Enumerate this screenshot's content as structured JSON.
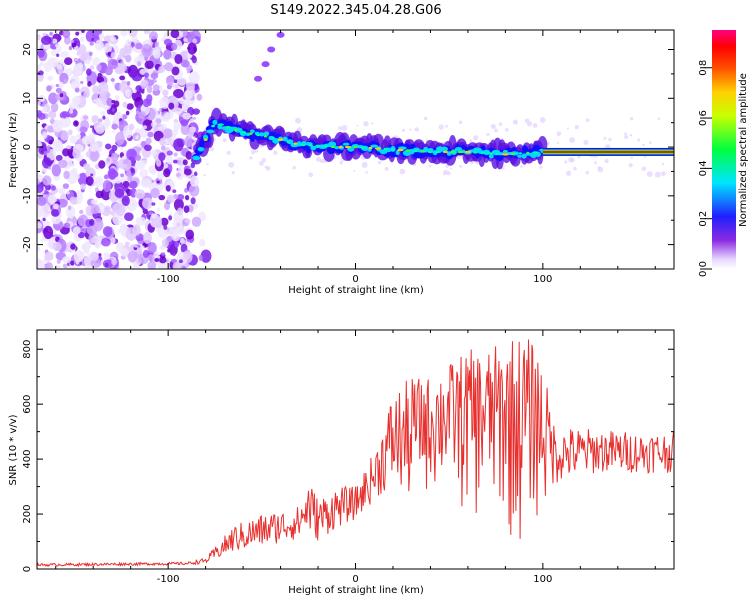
{
  "figure_title": "S149.2022.345.04.28.G06",
  "chart_data": [
    {
      "type": "heatmap",
      "xlabel": "Height of straight line (km)",
      "ylabel": "Frequency (Hz)",
      "xlim": [
        -170,
        170
      ],
      "ylim": [
        -25,
        24
      ],
      "x_ticks": [
        -100,
        0,
        100
      ],
      "y_ticks": [
        -20,
        -10,
        0,
        10,
        20
      ],
      "colorbar": {
        "label": "Normalized spectral amplitude",
        "range": [
          0,
          0.95
        ],
        "ticks": [
          0.0,
          0.2,
          0.4,
          0.6,
          0.8
        ],
        "colormap": "rainbow (violet to magenta)"
      },
      "features": [
        {
          "description": "noise region",
          "x_range": [
            -170,
            -85
          ],
          "frequency_range": [
            -25,
            24
          ]
        },
        {
          "description": "signal ridge",
          "x_range": [
            -85,
            100
          ],
          "x": [
            -85,
            -75,
            -60,
            -45,
            -30,
            -10,
            0,
            20,
            40,
            60,
            80,
            100
          ],
          "frequency": [
            -2,
            5,
            3,
            2,
            0.5,
            0,
            0,
            -0.5,
            -1,
            -1,
            -1.5,
            -1
          ]
        },
        {
          "description": "constant line",
          "x_range": [
            100,
            170
          ],
          "frequency": -1
        }
      ]
    },
    {
      "type": "line",
      "xlabel": "Height of straight line (km)",
      "ylabel": "SNR (10 * v/v)",
      "xlim": [
        -170,
        170
      ],
      "ylim": [
        0,
        870
      ],
      "x_ticks": [
        -100,
        0,
        100
      ],
      "y_ticks": [
        0,
        200,
        400,
        600,
        800
      ],
      "color": "#e8302e",
      "envelope": {
        "x": [
          -170,
          -90,
          -80,
          -65,
          -50,
          -30,
          -25,
          -20,
          -10,
          0,
          10,
          20,
          30,
          40,
          50,
          60,
          70,
          80,
          85,
          90,
          95,
          100,
          105,
          110,
          130,
          150,
          170
        ],
        "low": [
          10,
          15,
          20,
          60,
          80,
          110,
          130,
          100,
          150,
          180,
          250,
          300,
          250,
          250,
          250,
          150,
          150,
          100,
          40,
          40,
          150,
          100,
          300,
          320,
          350,
          350,
          350
        ],
        "high": [
          20,
          25,
          40,
          160,
          200,
          230,
          330,
          260,
          300,
          300,
          430,
          650,
          700,
          700,
          750,
          800,
          800,
          830,
          860,
          850,
          830,
          760,
          550,
          520,
          510,
          500,
          500
        ]
      }
    }
  ]
}
